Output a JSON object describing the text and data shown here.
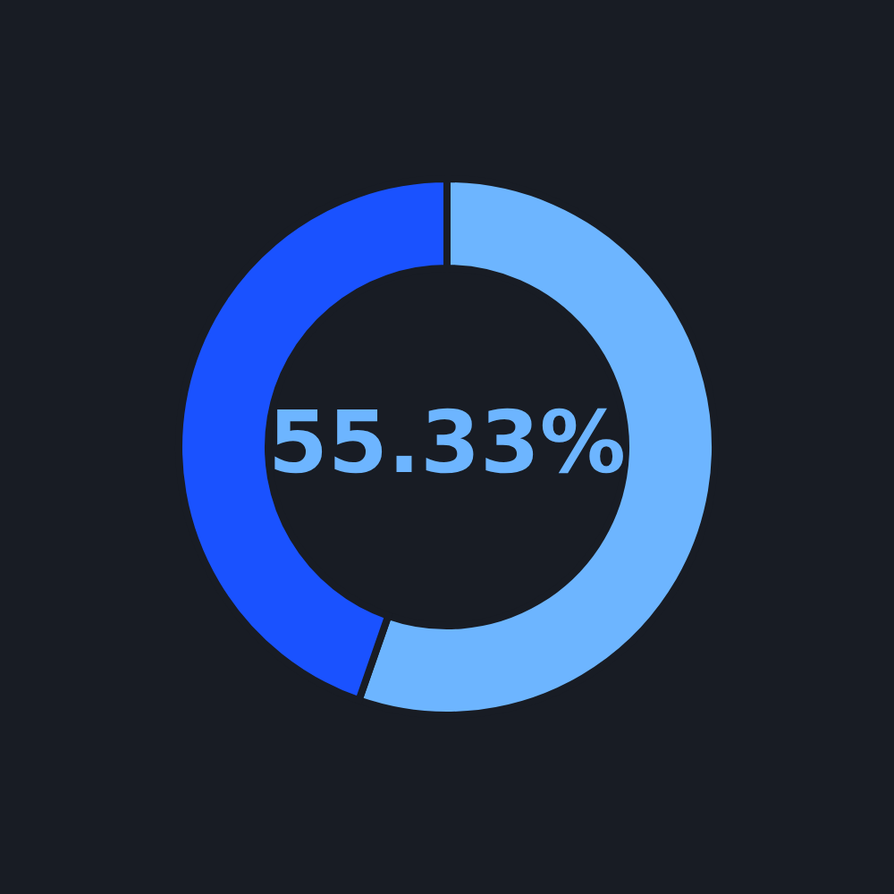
{
  "chart_data": {
    "type": "donut",
    "categories": [
      null,
      null
    ],
    "values": [
      55.33,
      44.67
    ],
    "colors": [
      "#6db5ff",
      "#1a52ff"
    ],
    "value_labels": [
      "55.33%",
      null
    ],
    "legend": false
  }
}
